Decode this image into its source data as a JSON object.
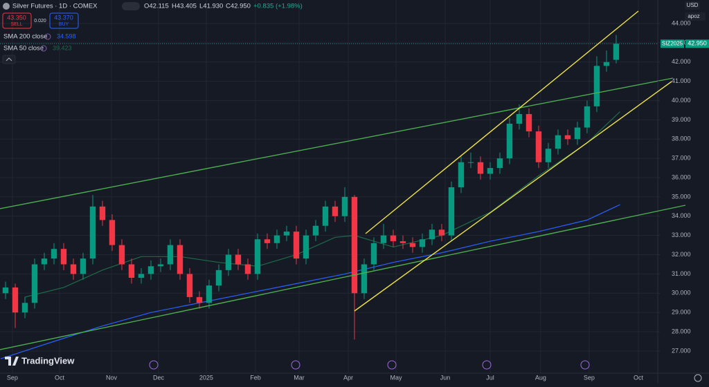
{
  "chart_data": {
    "type": "candlestick",
    "title": "Silver Futures · 1D · COMEX",
    "open": [
      30.0,
      30.3,
      29.0,
      29.5,
      31.5,
      31.8,
      32.3,
      31.5,
      31.0,
      31.8,
      34.5,
      33.8,
      32.5,
      31.5,
      30.8,
      31.0,
      31.4,
      31.5,
      32.5,
      31.0,
      29.8,
      29.5,
      30.4,
      31.2,
      32.0,
      31.5,
      31.0,
      32.8,
      32.6,
      33.0,
      33.2,
      31.8,
      33.0,
      33.5,
      34.5,
      34.0,
      35.0,
      30.0,
      31.5,
      32.6,
      33.0,
      32.7,
      32.6,
      32.4,
      32.8,
      33.3,
      33.0,
      35.5,
      36.8,
      36.8,
      36.2,
      36.5,
      37.0,
      38.8,
      39.3,
      38.4,
      36.8,
      37.5,
      38.2,
      38.0,
      38.6,
      39.7,
      41.8,
      42.115
    ],
    "high": [
      30.6,
      30.5,
      29.8,
      31.8,
      32.1,
      32.6,
      32.6,
      31.8,
      32.1,
      35.1,
      34.8,
      34.1,
      32.8,
      31.8,
      31.3,
      31.7,
      31.8,
      32.8,
      32.8,
      31.3,
      30.1,
      30.7,
      31.5,
      32.3,
      32.3,
      31.8,
      33.1,
      33.1,
      33.3,
      33.5,
      33.5,
      33.3,
      33.8,
      34.8,
      34.8,
      35.5,
      35.1,
      31.8,
      32.9,
      33.6,
      33.3,
      33.0,
      32.9,
      33.1,
      33.6,
      33.6,
      35.8,
      37.1,
      37.3,
      37.1,
      36.8,
      37.3,
      39.1,
      39.8,
      39.6,
      38.7,
      37.8,
      38.5,
      38.5,
      38.9,
      40.0,
      42.3,
      42.6,
      43.405
    ],
    "low": [
      29.7,
      28.2,
      28.7,
      29.2,
      31.2,
      31.5,
      31.2,
      30.7,
      30.7,
      31.5,
      33.5,
      32.2,
      31.2,
      30.5,
      30.5,
      30.7,
      31.1,
      31.2,
      30.7,
      29.5,
      29.2,
      29.2,
      30.1,
      30.9,
      31.2,
      30.7,
      30.7,
      32.3,
      32.3,
      32.7,
      31.5,
      31.5,
      32.7,
      33.2,
      33.7,
      33.7,
      27.6,
      29.7,
      31.2,
      32.3,
      32.4,
      32.3,
      32.1,
      32.1,
      32.5,
      32.7,
      32.7,
      35.2,
      36.5,
      35.9,
      35.9,
      36.2,
      36.7,
      38.5,
      38.1,
      36.5,
      36.5,
      37.2,
      37.7,
      37.7,
      38.3,
      39.4,
      41.5,
      41.93
    ],
    "close": [
      30.3,
      29.0,
      29.5,
      31.5,
      31.8,
      32.3,
      31.5,
      31.0,
      31.8,
      34.5,
      33.8,
      32.5,
      31.5,
      30.8,
      31.0,
      31.4,
      31.5,
      32.5,
      31.0,
      29.8,
      29.5,
      30.4,
      31.2,
      32.0,
      31.5,
      31.0,
      32.8,
      32.6,
      33.0,
      33.2,
      31.8,
      33.0,
      33.5,
      34.5,
      34.0,
      35.0,
      30.0,
      31.5,
      32.6,
      33.0,
      32.7,
      32.6,
      32.4,
      32.8,
      33.3,
      33.0,
      35.5,
      36.8,
      36.8,
      36.2,
      36.5,
      37.0,
      38.8,
      39.3,
      38.4,
      36.8,
      37.5,
      38.2,
      38.0,
      38.6,
      39.7,
      41.8,
      42.0,
      42.95
    ],
    "up_color": "#089981",
    "down_color": "#f23645",
    "grid": true,
    "xlim": [
      -0.571,
      67.29
    ],
    "xticks": [
      {
        "value": 0.71,
        "label": "Sep"
      },
      {
        "value": 5.57,
        "label": "Oct"
      },
      {
        "value": 10.93,
        "label": "Nov"
      },
      {
        "value": 15.79,
        "label": "Dec"
      },
      {
        "value": 20.71,
        "label": "2025"
      },
      {
        "value": 25.79,
        "label": "Feb"
      },
      {
        "value": 30.29,
        "label": "Mar"
      },
      {
        "value": 35.36,
        "label": "Apr"
      },
      {
        "value": 40.29,
        "label": "May"
      },
      {
        "value": 45.36,
        "label": "Jun"
      },
      {
        "value": 50,
        "label": "Jul"
      },
      {
        "value": 55.21,
        "label": "Aug"
      },
      {
        "value": 60.21,
        "label": "Sep"
      },
      {
        "value": 65.29,
        "label": "Oct"
      }
    ],
    "ylim": [
      25.85,
      45.22
    ],
    "yticks": [
      {
        "value": 27,
        "label": "27.000"
      },
      {
        "value": 28,
        "label": "28.000"
      },
      {
        "value": 29,
        "label": "29.000"
      },
      {
        "value": 30,
        "label": "30.000"
      },
      {
        "value": 31,
        "label": "31.000"
      },
      {
        "value": 32,
        "label": "32.000"
      },
      {
        "value": 33,
        "label": "33.000"
      },
      {
        "value": 34,
        "label": "34.000"
      },
      {
        "value": 35,
        "label": "35.000"
      },
      {
        "value": 36,
        "label": "36.000"
      },
      {
        "value": 37,
        "label": "37.000"
      },
      {
        "value": 38,
        "label": "38.000"
      },
      {
        "value": 39,
        "label": "39.000"
      },
      {
        "value": 40,
        "label": "40.000"
      },
      {
        "value": 41,
        "label": "41.000"
      },
      {
        "value": 42,
        "label": "42.000"
      },
      {
        "value": 43,
        "label": "43.000"
      },
      {
        "value": 44,
        "label": "44.000"
      }
    ],
    "indicators": [
      {
        "name": "SMA 200 close",
        "color": "#2962ff",
        "x": [
          -0.5,
          5,
          10,
          15,
          20,
          25,
          30,
          35,
          40,
          45,
          50,
          55,
          60,
          63.4
        ],
        "values": [
          26.6,
          27.5,
          28.3,
          29.0,
          29.5,
          30.0,
          30.5,
          31.0,
          31.6,
          32.1,
          32.7,
          33.2,
          33.8,
          34.598
        ]
      },
      {
        "name": "SMA 50 close",
        "color": "#1e6b4a",
        "x": [
          2,
          6,
          10,
          14,
          18,
          22,
          26,
          30,
          34,
          36,
          40,
          45,
          50,
          55,
          60,
          63.4
        ],
        "values": [
          29.8,
          30.3,
          31.2,
          31.9,
          31.9,
          31.6,
          31.4,
          32.0,
          32.9,
          33.0,
          32.4,
          33.0,
          34.2,
          36.1,
          37.8,
          39.423
        ]
      }
    ],
    "last_price": {
      "value": 42.95,
      "label": "42.950"
    },
    "symbol": "SIZ2025"
  },
  "quote": [
    "O42.115",
    "H43.405",
    "L41.930",
    "C42.950",
    "+0.835 (+1.98%)"
  ],
  "trade": {
    "sell_price": "43.350",
    "sell": "SELL",
    "spread": "0.020",
    "buy_price": "43.370",
    "buy": "BUY"
  },
  "currency": "USD",
  "scale_menu": "apoz",
  "brand": "TradingView"
}
